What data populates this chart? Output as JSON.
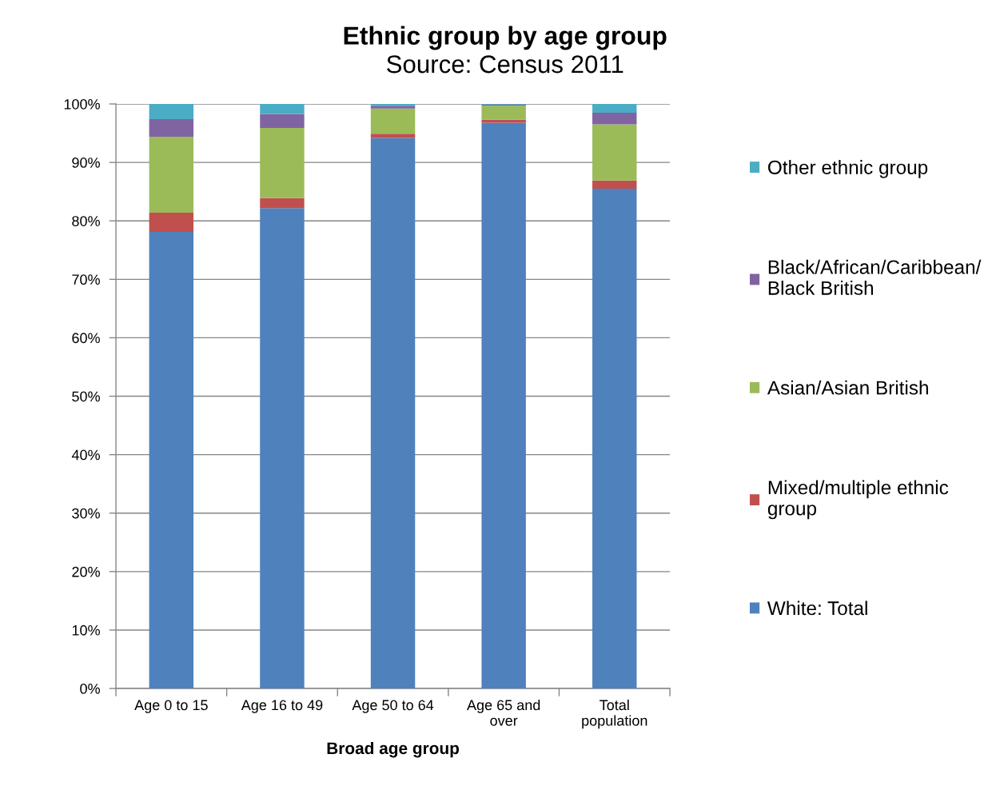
{
  "chart_data": {
    "type": "bar",
    "title": "Ethnic group by age group",
    "subtitle": "Source: Census 2011",
    "xlabel": "Broad age group",
    "categories": [
      "Age 0 to 15",
      "Age 16 to 49",
      "Age 50 to 64",
      "Age 65 and\nover",
      "Total\npopulation"
    ],
    "stacked": true,
    "series": [
      {
        "name": "White: Total",
        "color": "#4f81bd",
        "values": [
          78.1,
          82.2,
          94.2,
          96.8,
          85.5
        ]
      },
      {
        "name": "Mixed/multiple ethnic\ngroup",
        "color": "#c0504d",
        "values": [
          3.3,
          1.7,
          0.7,
          0.5,
          1.4
        ]
      },
      {
        "name": "Asian/Asian British",
        "color": "#9bbb59",
        "values": [
          13.0,
          12.0,
          4.3,
          2.4,
          9.6
        ]
      },
      {
        "name": "Black/African/Caribbean/\nBlack British",
        "color": "#8064a2",
        "values": [
          3.0,
          2.4,
          0.5,
          0.2,
          2.0
        ]
      },
      {
        "name": "Other ethnic group",
        "color": "#4bacc6",
        "values": [
          2.6,
          1.7,
          0.3,
          0.1,
          1.5
        ]
      }
    ],
    "ylim": [
      0,
      100
    ],
    "yticks": [
      {
        "value": 0,
        "label": "0%"
      },
      {
        "value": 10,
        "label": "10%"
      },
      {
        "value": 20,
        "label": "20%"
      },
      {
        "value": 30,
        "label": "30%"
      },
      {
        "value": 40,
        "label": "40%"
      },
      {
        "value": 50,
        "label": "50%"
      },
      {
        "value": 60,
        "label": "60%"
      },
      {
        "value": 70,
        "label": "70%"
      },
      {
        "value": 80,
        "label": "80%"
      },
      {
        "value": 90,
        "label": "90%"
      },
      {
        "value": 100,
        "label": "100%"
      }
    ],
    "grid": "y",
    "legend": "right"
  }
}
